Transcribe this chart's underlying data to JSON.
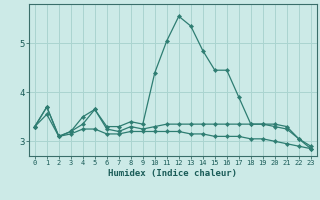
{
  "xlabel": "Humidex (Indice chaleur)",
  "x": [
    0,
    1,
    2,
    3,
    4,
    5,
    6,
    7,
    8,
    9,
    10,
    11,
    12,
    13,
    14,
    15,
    16,
    17,
    18,
    19,
    20,
    21,
    22,
    23
  ],
  "line1": [
    3.3,
    3.7,
    3.1,
    3.2,
    3.5,
    3.65,
    3.3,
    3.3,
    3.4,
    3.35,
    4.4,
    5.05,
    5.55,
    5.35,
    4.85,
    4.45,
    4.45,
    3.9,
    3.35,
    3.35,
    3.35,
    3.3,
    3.05,
    2.9
  ],
  "line2": [
    3.3,
    3.7,
    3.1,
    3.2,
    3.35,
    3.65,
    3.25,
    3.2,
    3.3,
    3.25,
    3.3,
    3.35,
    3.35,
    3.35,
    3.35,
    3.35,
    3.35,
    3.35,
    3.35,
    3.35,
    3.3,
    3.25,
    3.05,
    2.85
  ],
  "line3": [
    3.3,
    3.55,
    3.1,
    3.15,
    3.25,
    3.25,
    3.15,
    3.15,
    3.2,
    3.2,
    3.2,
    3.2,
    3.2,
    3.15,
    3.15,
    3.1,
    3.1,
    3.1,
    3.05,
    3.05,
    3.0,
    2.95,
    2.9,
    2.85
  ],
  "color": "#2e7d72",
  "bg_color": "#cceae7",
  "grid_color": "#aad4d0",
  "ylim": [
    2.7,
    5.8
  ],
  "yticks": [
    3,
    4,
    5
  ],
  "xlim": [
    -0.5,
    23.5
  ],
  "tick_fontsize": 5.0,
  "xlabel_fontsize": 6.5
}
